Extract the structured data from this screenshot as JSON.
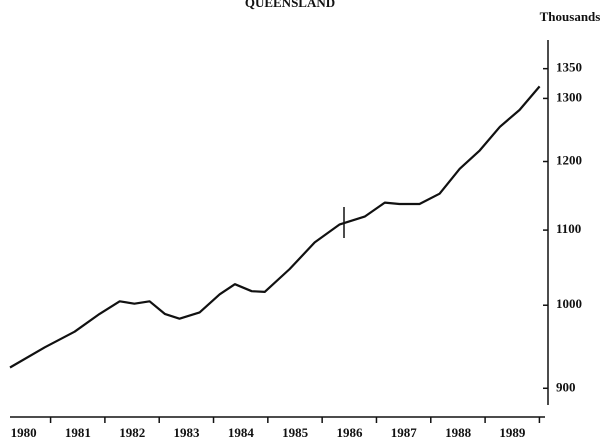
{
  "chart_data": {
    "type": "line",
    "title": "QUEENSLAND",
    "y_label": "Thousands",
    "x": [
      1979.75,
      1980.39,
      1980.94,
      1981.4,
      1981.77,
      1982.04,
      1982.32,
      1982.6,
      1982.87,
      1983.24,
      1983.61,
      1983.89,
      1984.2,
      1984.44,
      1984.9,
      1985.36,
      1985.82,
      1986.28,
      1986.65,
      1986.92,
      1987.29,
      1987.66,
      1988.03,
      1988.4,
      1988.77,
      1989.13,
      1989.5
    ],
    "series": [
      {
        "name": "Queensland",
        "color": "#111111",
        "values": [
          924,
          948,
          967,
          989,
          1005,
          1002,
          1005,
          989,
          983,
          991,
          1014,
          1027,
          1018,
          1017,
          1047,
          1083,
          1108,
          1119,
          1139,
          1137,
          1137,
          1152,
          1189,
          1217,
          1254,
          1281,
          1320
        ]
      }
    ],
    "xlim": [
      1979.75,
      1989.6
    ],
    "xticks": [
      1980,
      1981,
      1982,
      1983,
      1984,
      1985,
      1986,
      1987,
      1988,
      1989
    ],
    "ylim": [
      870,
      1400
    ],
    "yticks": [
      900,
      1000,
      1100,
      1200,
      1300,
      1350
    ],
    "log_y": true,
    "y_axis_side": "right",
    "grid": false
  }
}
